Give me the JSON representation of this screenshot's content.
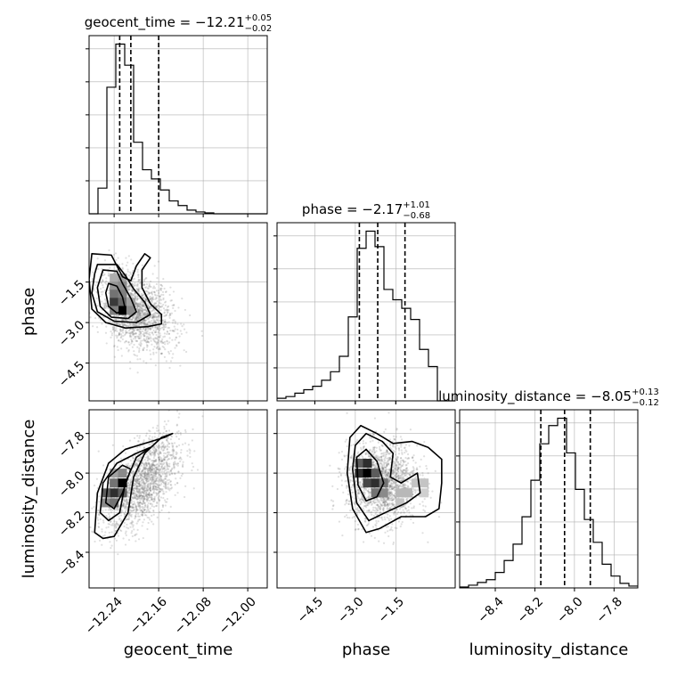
{
  "chart_data": {
    "type": "corner",
    "parameters": [
      {
        "name": "geocent_time",
        "label": "geocent_time",
        "range": [
          -12.285,
          -11.965
        ],
        "ticks": [
          -12.24,
          -12.16,
          -12.08,
          -12.0
        ],
        "tick_labels": [
          "−12.24",
          "−12.16",
          "−12.08",
          "−12.00"
        ],
        "title_main": "geocent_time = −12.21",
        "title_sup": "+0.05",
        "title_sub": "−0.02",
        "quantiles": [
          -12.23,
          -12.21,
          -12.16
        ],
        "histogram": {
          "bin_edges": [
            -12.285,
            -12.269,
            -12.253,
            -12.237,
            -12.221,
            -12.205,
            -12.189,
            -12.173,
            -12.157,
            -12.141,
            -12.125,
            -12.109,
            -12.093,
            -12.077,
            -12.061,
            -12.045,
            -12.029,
            -12.013,
            -11.997,
            -11.981,
            -11.965
          ],
          "counts": [
            0,
            28,
            138,
            185,
            162,
            78,
            48,
            38,
            26,
            14,
            9,
            4,
            2,
            1,
            0,
            0,
            0,
            0,
            0,
            0
          ]
        }
      },
      {
        "name": "phase",
        "label": "phase",
        "range": [
          -5.9,
          0.7
        ],
        "ticks": [
          -4.5,
          -3.0,
          -1.5
        ],
        "tick_labels": [
          "−4.5",
          "−3.0",
          "−1.5"
        ],
        "title_main": "phase = −2.17",
        "title_sup": "+1.01",
        "title_sub": "−0.68",
        "quantiles": [
          -2.85,
          -2.17,
          -1.16
        ],
        "histogram": {
          "bin_edges": [
            -5.9,
            -5.57,
            -5.24,
            -4.91,
            -4.58,
            -4.25,
            -3.92,
            -3.59,
            -3.26,
            -2.93,
            -2.6,
            -2.27,
            -1.94,
            -1.61,
            -1.28,
            -0.95,
            -0.62,
            -0.29,
            0.04,
            0.37,
            0.7
          ],
          "counts": [
            3,
            5,
            9,
            13,
            17,
            24,
            34,
            52,
            98,
            178,
            198,
            180,
            130,
            118,
            108,
            95,
            60,
            40,
            0,
            0
          ]
        }
      },
      {
        "name": "luminosity_distance",
        "label": "luminosity_distance",
        "range": [
          -8.58,
          -7.68
        ],
        "ticks": [
          -8.4,
          -8.2,
          -8.0,
          -7.8
        ],
        "tick_labels": [
          "−8.4",
          "−8.2",
          "−8.0",
          "−7.8"
        ],
        "title_main": "luminosity_distance = −8.05",
        "title_sup": "+0.13",
        "title_sub": "−0.12",
        "quantiles": [
          -8.17,
          -8.05,
          -7.92
        ],
        "histogram": {
          "bin_edges": [
            -8.58,
            -8.535,
            -8.49,
            -8.445,
            -8.4,
            -8.355,
            -8.31,
            -8.265,
            -8.22,
            -8.175,
            -8.13,
            -8.085,
            -8.04,
            -7.995,
            -7.95,
            -7.905,
            -7.86,
            -7.815,
            -7.77,
            -7.725,
            -7.68
          ],
          "counts": [
            1,
            3,
            6,
            9,
            17,
            30,
            48,
            78,
            118,
            158,
            178,
            186,
            148,
            108,
            75,
            50,
            26,
            13,
            5,
            2
          ]
        }
      }
    ],
    "pairs": [
      {
        "x": "geocent_time",
        "y": "phase",
        "hist2d_cells": [
          {
            "x": -12.24,
            "y": -1.35,
            "v": 0.25
          },
          {
            "x": -12.225,
            "y": -1.35,
            "v": 0.3
          },
          {
            "x": -12.24,
            "y": -1.65,
            "v": 0.35
          },
          {
            "x": -12.225,
            "y": -1.65,
            "v": 0.4
          },
          {
            "x": -12.24,
            "y": -1.95,
            "v": 0.5
          },
          {
            "x": -12.225,
            "y": -1.95,
            "v": 0.45
          },
          {
            "x": -12.24,
            "y": -2.25,
            "v": 0.75
          },
          {
            "x": -12.225,
            "y": -2.25,
            "v": 0.55
          },
          {
            "x": -12.21,
            "y": -2.25,
            "v": 0.3
          },
          {
            "x": -12.225,
            "y": -2.55,
            "v": 1.0
          },
          {
            "x": -12.21,
            "y": -2.55,
            "v": 0.4
          },
          {
            "x": -12.24,
            "y": -2.55,
            "v": 0.45
          }
        ],
        "contour_levels": [
          [
            [
              -12.27,
              -0.85
            ],
            [
              -12.235,
              -0.85
            ],
            [
              -12.22,
              -1.25
            ],
            [
              -12.205,
              -1.75
            ],
            [
              -12.185,
              -2.25
            ],
            [
              -12.175,
              -2.7
            ],
            [
              -12.2,
              -3.0
            ],
            [
              -12.24,
              -2.95
            ],
            [
              -12.27,
              -2.6
            ],
            [
              -12.28,
              -1.9
            ],
            [
              -12.275,
              -1.2
            ]
          ],
          [
            [
              -12.26,
              -1.05
            ],
            [
              -12.235,
              -1.1
            ],
            [
              -12.225,
              -1.55
            ],
            [
              -12.21,
              -2.1
            ],
            [
              -12.2,
              -2.6
            ],
            [
              -12.215,
              -2.85
            ],
            [
              -12.245,
              -2.8
            ],
            [
              -12.265,
              -2.4
            ],
            [
              -12.27,
              -1.7
            ]
          ],
          [
            [
              -12.25,
              -1.55
            ],
            [
              -12.235,
              -1.65
            ],
            [
              -12.225,
              -2.05
            ],
            [
              -12.22,
              -2.5
            ],
            [
              -12.235,
              -2.65
            ],
            [
              -12.25,
              -2.4
            ],
            [
              -12.255,
              -1.9
            ]
          ]
        ],
        "outer_contour": [
          [
            -12.28,
            -0.45
          ],
          [
            -12.245,
            -0.5
          ],
          [
            -12.235,
            -0.9
          ],
          [
            -12.225,
            -1.3
          ],
          [
            -12.21,
            -1.45
          ],
          [
            -12.2,
            -0.9
          ],
          [
            -12.185,
            -0.45
          ],
          [
            -12.175,
            -0.6
          ],
          [
            -12.19,
            -1.05
          ],
          [
            -12.19,
            -1.7
          ],
          [
            -12.175,
            -2.3
          ],
          [
            -12.155,
            -2.7
          ],
          [
            -12.155,
            -3.05
          ],
          [
            -12.18,
            -3.15
          ],
          [
            -12.22,
            -3.2
          ],
          [
            -12.255,
            -3.0
          ],
          [
            -12.28,
            -2.5
          ],
          [
            -12.285,
            -1.4
          ]
        ],
        "scatter": {
          "x_center": -12.2,
          "x_spread": 0.06,
          "y_center": -2.6,
          "y_spread": 1.2,
          "count": 1800
        }
      },
      {
        "x": "geocent_time",
        "y": "luminosity_distance",
        "hist2d_cells": [
          {
            "x": -12.24,
            "y": -8.0,
            "v": 0.3
          },
          {
            "x": -12.225,
            "y": -8.0,
            "v": 0.4
          },
          {
            "x": -12.24,
            "y": -8.05,
            "v": 0.5
          },
          {
            "x": -12.225,
            "y": -8.05,
            "v": 1.0
          },
          {
            "x": -12.24,
            "y": -8.1,
            "v": 0.8
          },
          {
            "x": -12.225,
            "y": -8.1,
            "v": 0.6
          },
          {
            "x": -12.255,
            "y": -8.1,
            "v": 0.6
          },
          {
            "x": -12.255,
            "y": -8.15,
            "v": 0.4
          },
          {
            "x": -12.24,
            "y": -8.15,
            "v": 0.5
          }
        ],
        "contour_levels": [
          [
            [
              -12.275,
              -8.3
            ],
            [
              -12.27,
              -8.1
            ],
            [
              -12.25,
              -7.95
            ],
            [
              -12.22,
              -7.88
            ],
            [
              -12.185,
              -7.85
            ],
            [
              -12.15,
              -7.82
            ],
            [
              -12.135,
              -7.8
            ],
            [
              -12.155,
              -7.82
            ],
            [
              -12.185,
              -7.9
            ],
            [
              -12.205,
              -8.02
            ],
            [
              -12.215,
              -8.2
            ],
            [
              -12.24,
              -8.32
            ],
            [
              -12.26,
              -8.33
            ]
          ],
          [
            [
              -12.265,
              -8.2
            ],
            [
              -12.26,
              -8.05
            ],
            [
              -12.235,
              -7.95
            ],
            [
              -12.2,
              -7.9
            ],
            [
              -12.175,
              -7.87
            ],
            [
              -12.2,
              -7.92
            ],
            [
              -12.22,
              -8.05
            ],
            [
              -12.23,
              -8.2
            ],
            [
              -12.25,
              -8.24
            ]
          ],
          [
            [
              -12.255,
              -8.15
            ],
            [
              -12.25,
              -8.02
            ],
            [
              -12.225,
              -7.96
            ],
            [
              -12.21,
              -7.98
            ],
            [
              -12.225,
              -8.1
            ],
            [
              -12.24,
              -8.18
            ]
          ]
        ],
        "outer_contour": [],
        "scatter": {
          "x_center": -12.19,
          "x_spread": 0.06,
          "y_center": -8.05,
          "y_spread": 0.18,
          "count": 1800
        }
      },
      {
        "x": "phase",
        "y": "luminosity_distance",
        "hist2d_cells": [
          {
            "x": -2.85,
            "y": -7.95,
            "v": 0.6
          },
          {
            "x": -2.55,
            "y": -7.95,
            "v": 0.8
          },
          {
            "x": -2.85,
            "y": -8.0,
            "v": 0.8
          },
          {
            "x": -2.55,
            "y": -8.0,
            "v": 1.0
          },
          {
            "x": -2.25,
            "y": -8.0,
            "v": 0.6
          },
          {
            "x": -2.55,
            "y": -8.05,
            "v": 0.7
          },
          {
            "x": -2.25,
            "y": -8.05,
            "v": 0.8
          },
          {
            "x": -1.95,
            "y": -8.05,
            "v": 0.5
          },
          {
            "x": -1.95,
            "y": -8.1,
            "v": 0.4
          },
          {
            "x": -2.25,
            "y": -8.1,
            "v": 0.5
          },
          {
            "x": -1.35,
            "y": -8.1,
            "v": 0.2
          },
          {
            "x": -1.05,
            "y": -8.1,
            "v": 0.2
          },
          {
            "x": -0.75,
            "y": -8.05,
            "v": 0.15
          },
          {
            "x": -0.45,
            "y": -8.05,
            "v": 0.15
          },
          {
            "x": -0.45,
            "y": -8.1,
            "v": 0.1
          },
          {
            "x": -1.35,
            "y": -8.15,
            "v": 0.15
          }
        ],
        "contour_levels": [
          [
            [
              -3.2,
              -7.82
            ],
            [
              -2.8,
              -7.76
            ],
            [
              -2.2,
              -7.8
            ],
            [
              -1.6,
              -7.85
            ],
            [
              -0.9,
              -7.84
            ],
            [
              -0.3,
              -7.87
            ],
            [
              0.2,
              -7.93
            ],
            [
              0.2,
              -8.05
            ],
            [
              0.1,
              -8.18
            ],
            [
              -0.4,
              -8.22
            ],
            [
              -1.3,
              -8.22
            ],
            [
              -2.1,
              -8.28
            ],
            [
              -2.6,
              -8.3
            ],
            [
              -3.1,
              -8.18
            ],
            [
              -3.3,
              -8.0
            ]
          ],
          [
            [
              -3.0,
              -7.86
            ],
            [
              -2.6,
              -7.8
            ],
            [
              -2.0,
              -7.84
            ],
            [
              -1.6,
              -7.9
            ],
            [
              -1.7,
              -8.02
            ],
            [
              -1.3,
              -8.05
            ],
            [
              -0.7,
              -8.0
            ],
            [
              -0.6,
              -8.1
            ],
            [
              -1.1,
              -8.15
            ],
            [
              -1.9,
              -8.2
            ],
            [
              -2.5,
              -8.24
            ],
            [
              -2.95,
              -8.15
            ],
            [
              -3.1,
              -7.98
            ]
          ],
          [
            [
              -2.95,
              -7.92
            ],
            [
              -2.6,
              -7.88
            ],
            [
              -2.2,
              -7.94
            ],
            [
              -1.95,
              -8.05
            ],
            [
              -2.2,
              -8.12
            ],
            [
              -2.6,
              -8.14
            ],
            [
              -2.9,
              -8.06
            ]
          ]
        ],
        "outer_contour": [],
        "scatter": {
          "x_center": -2.0,
          "x_spread": 1.2,
          "y_center": -8.05,
          "y_spread": 0.18,
          "count": 1800
        }
      }
    ],
    "grid": true
  }
}
